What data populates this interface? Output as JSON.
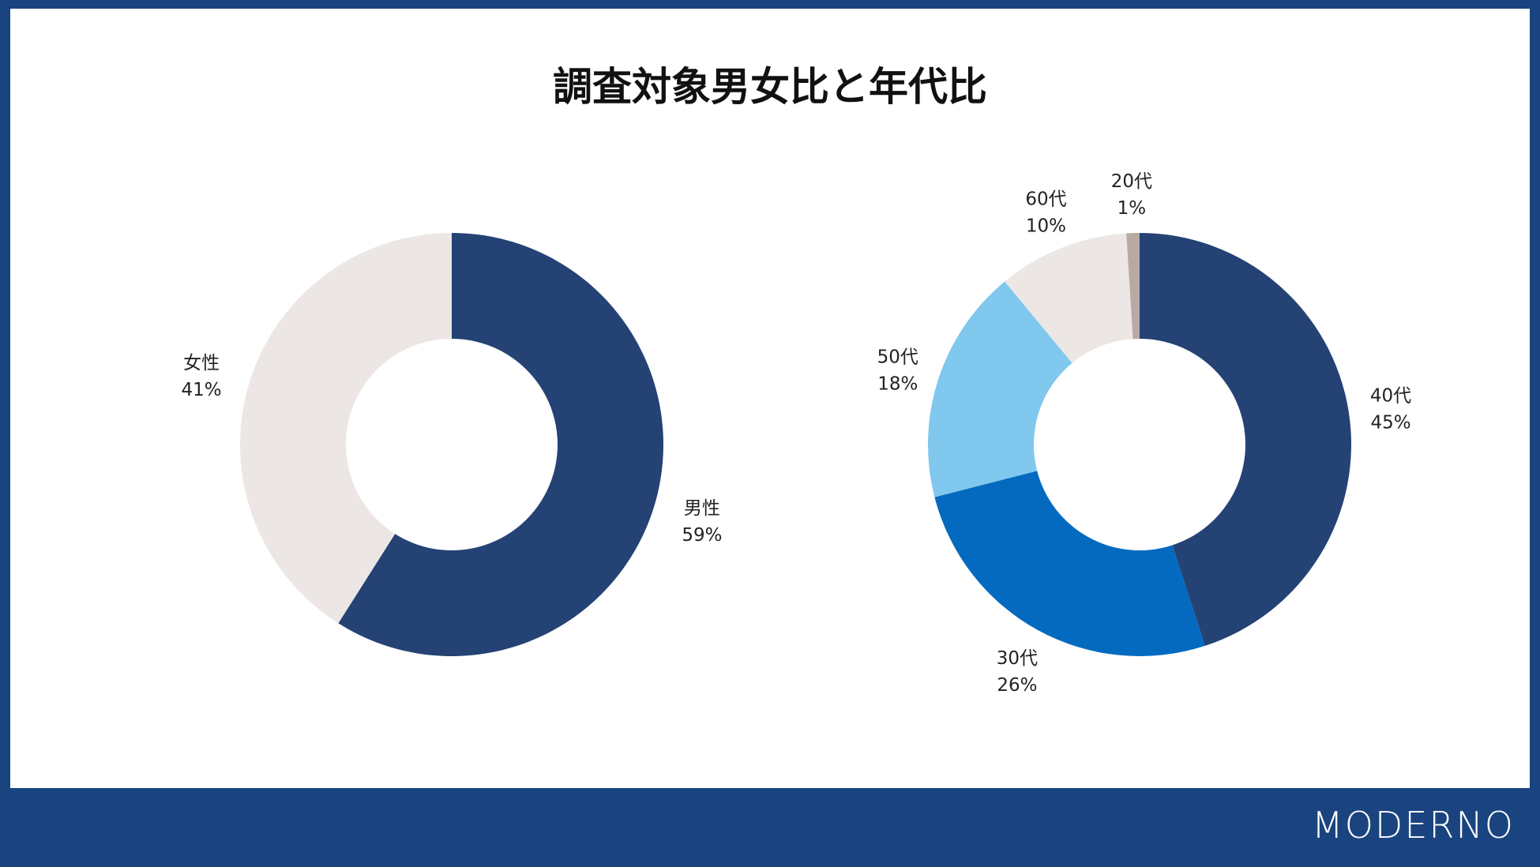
{
  "title": "調査対象男女比と年代比",
  "logo": "MODERNO",
  "colors": {
    "frame": "#1a4480",
    "male": "#244274",
    "female": "#ece7e4",
    "age40": "#244274",
    "age30": "#036ac0",
    "age50": "#80c8ee",
    "age60": "#ece7e4",
    "age20": "#b8a9a4"
  },
  "chart_data": [
    {
      "type": "pie",
      "style": "donut",
      "slices": [
        {
          "label": "男性",
          "pct": "59%",
          "value": 59,
          "color": "#244274"
        },
        {
          "label": "女性",
          "pct": "41%",
          "value": 41,
          "color": "#ece7e4"
        }
      ]
    },
    {
      "type": "pie",
      "style": "donut",
      "slices": [
        {
          "label": "40代",
          "pct": "45%",
          "value": 45,
          "color": "#244274"
        },
        {
          "label": "30代",
          "pct": "26%",
          "value": 26,
          "color": "#036ac0"
        },
        {
          "label": "50代",
          "pct": "18%",
          "value": 18,
          "color": "#80c8ee"
        },
        {
          "label": "60代",
          "pct": "10%",
          "value": 10,
          "color": "#ece7e4"
        },
        {
          "label": "20代",
          "pct": "1%",
          "value": 1,
          "color": "#b8a9a4"
        }
      ]
    }
  ]
}
